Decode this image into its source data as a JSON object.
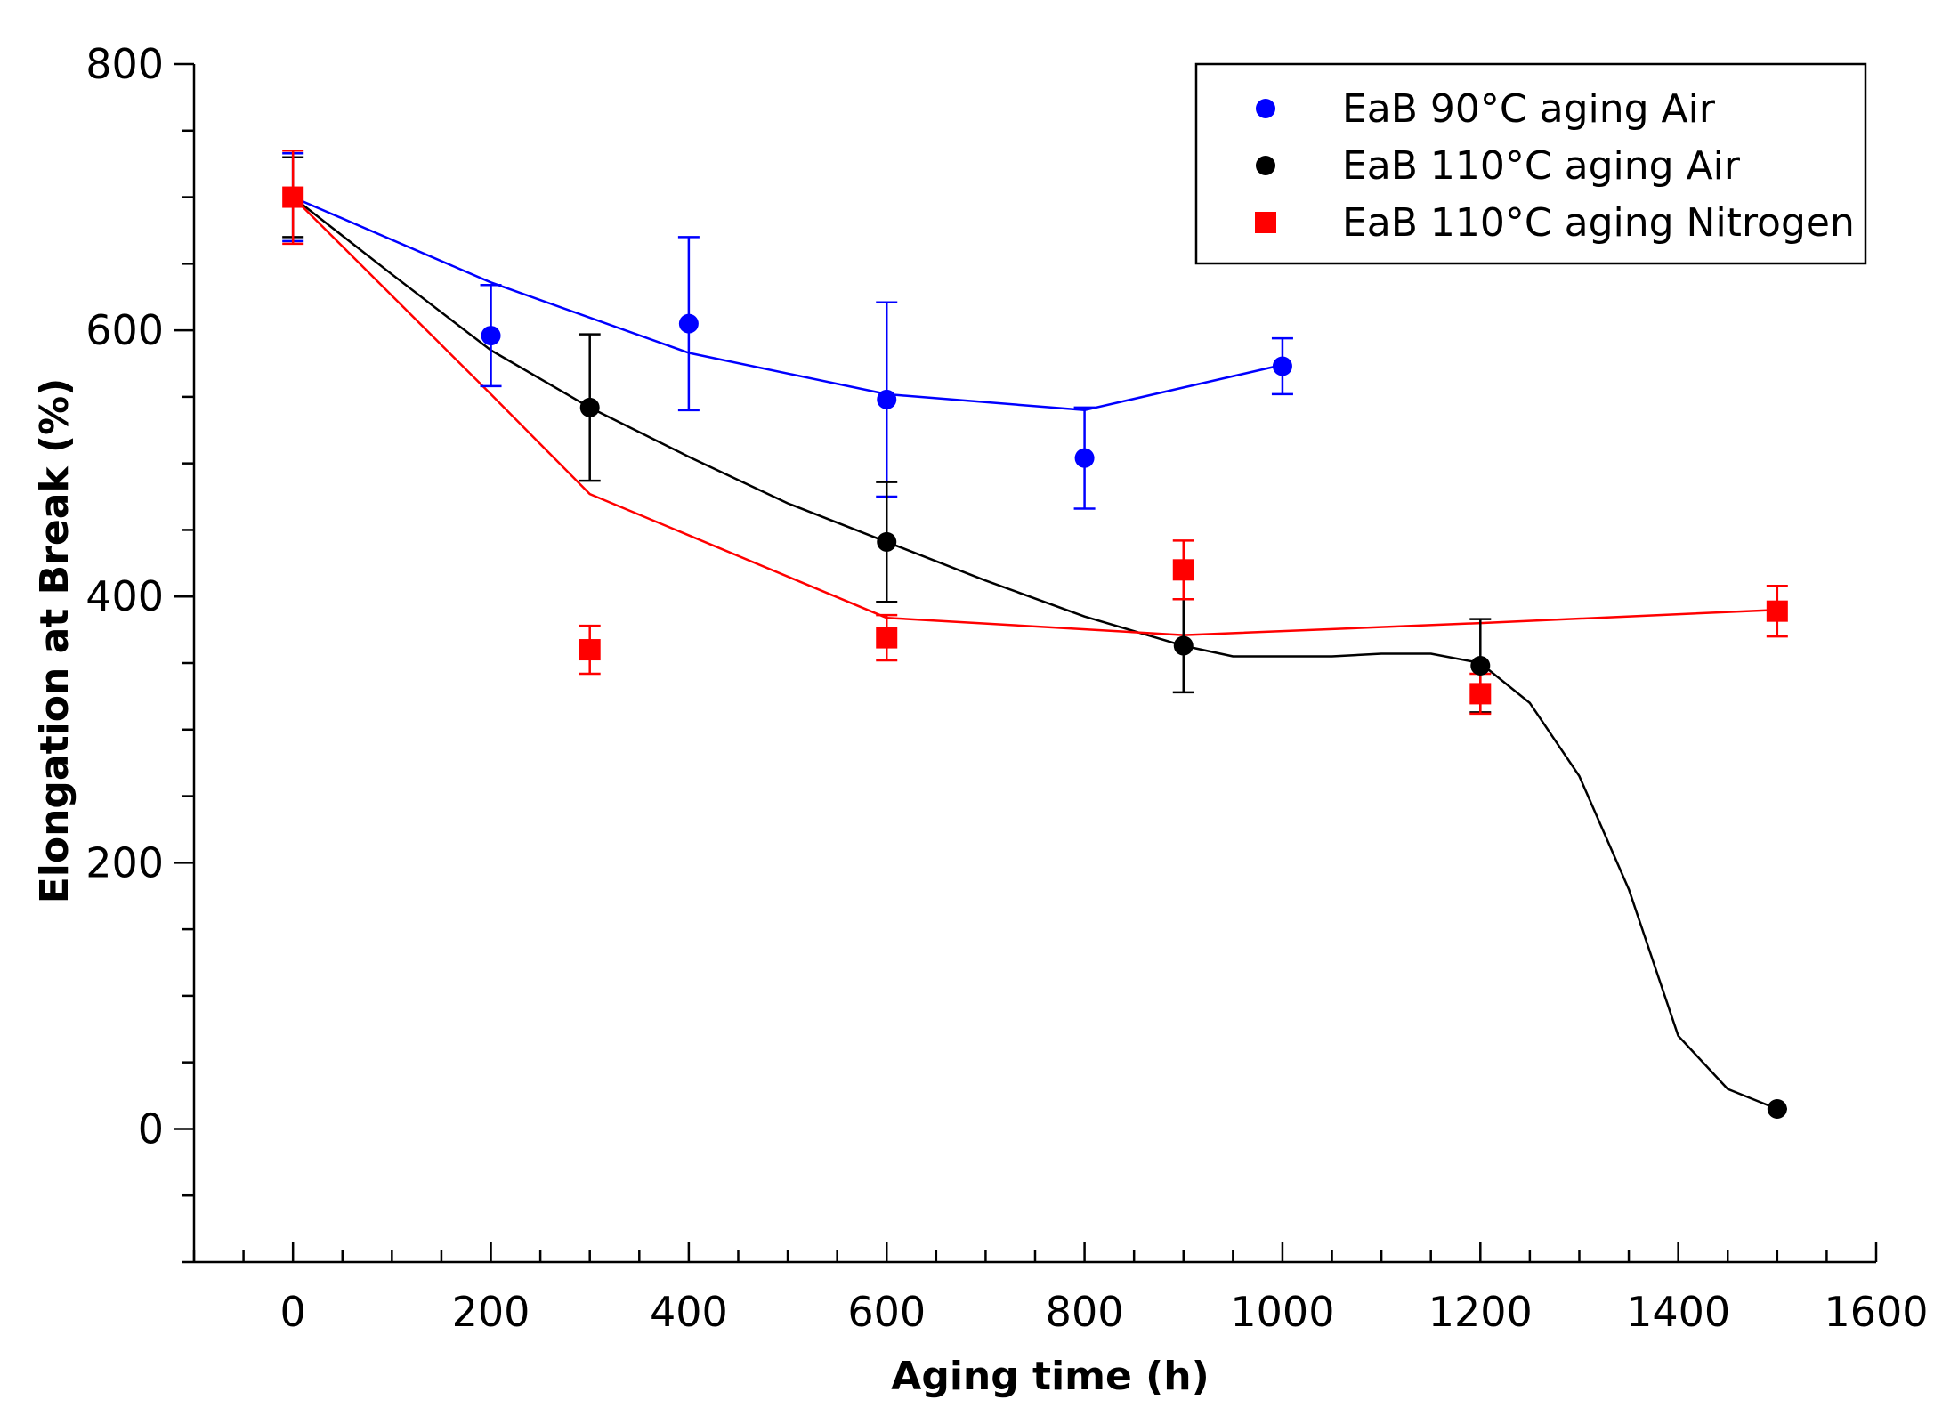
{
  "chart_data": {
    "type": "scatter",
    "xlabel": "Aging time (h)",
    "ylabel": "Elongation at Break (%)",
    "xlim": [
      -100,
      1600
    ],
    "ylim": [
      -100,
      800
    ],
    "xticks": [
      0,
      200,
      400,
      600,
      800,
      1000,
      1200,
      1400,
      1600
    ],
    "xtick_labels": [
      "0",
      "200",
      "400",
      "600",
      "800",
      "1000",
      "1200",
      "1400",
      "1600"
    ],
    "yticks": [
      0,
      200,
      400,
      600,
      800
    ],
    "ytick_labels": [
      "0",
      "200",
      "400",
      "600",
      "800"
    ],
    "grid": false,
    "legend_position": "top-right",
    "series": [
      {
        "name": "EaB 90°C aging Air",
        "color": "#0000ff",
        "marker": "circle",
        "x": [
          0,
          200,
          400,
          600,
          800,
          1000
        ],
        "y": [
          700,
          596,
          605,
          548,
          504,
          573
        ],
        "err": [
          33,
          38,
          65,
          73,
          38,
          21
        ],
        "fit_x": [
          0,
          200,
          400,
          600,
          800,
          1000
        ],
        "fit_y": [
          700,
          636,
          583,
          552,
          540,
          574
        ]
      },
      {
        "name": "EaB 110°C aging Air",
        "color": "#000000",
        "marker": "circle",
        "x": [
          0,
          300,
          600,
          900,
          1200,
          1500
        ],
        "y": [
          700,
          542,
          441,
          363,
          348,
          15
        ],
        "err": [
          30,
          55,
          45,
          35,
          35,
          0
        ],
        "fit_x": [
          0,
          100,
          200,
          300,
          400,
          500,
          600,
          700,
          800,
          900,
          950,
          1000,
          1050,
          1100,
          1150,
          1200,
          1250,
          1300,
          1350,
          1400,
          1450,
          1500,
          1510
        ],
        "fit_y": [
          700,
          642,
          585,
          542,
          505,
          470,
          441,
          412,
          385,
          363,
          355,
          355,
          355,
          357,
          357,
          350,
          320,
          265,
          180,
          70,
          30,
          15,
          15
        ]
      },
      {
        "name": "EaB 110°C aging Nitrogen",
        "color": "#ff0000",
        "marker": "square",
        "x": [
          0,
          300,
          600,
          900,
          1200,
          1500
        ],
        "y": [
          700,
          360,
          369,
          420,
          327,
          389
        ],
        "err": [
          35,
          18,
          17,
          22,
          15,
          19
        ],
        "fit_x": [
          0,
          200,
          300,
          600,
          900,
          1200,
          1500
        ],
        "fit_y": [
          700,
          552,
          477,
          384,
          371,
          380,
          390
        ]
      }
    ]
  }
}
